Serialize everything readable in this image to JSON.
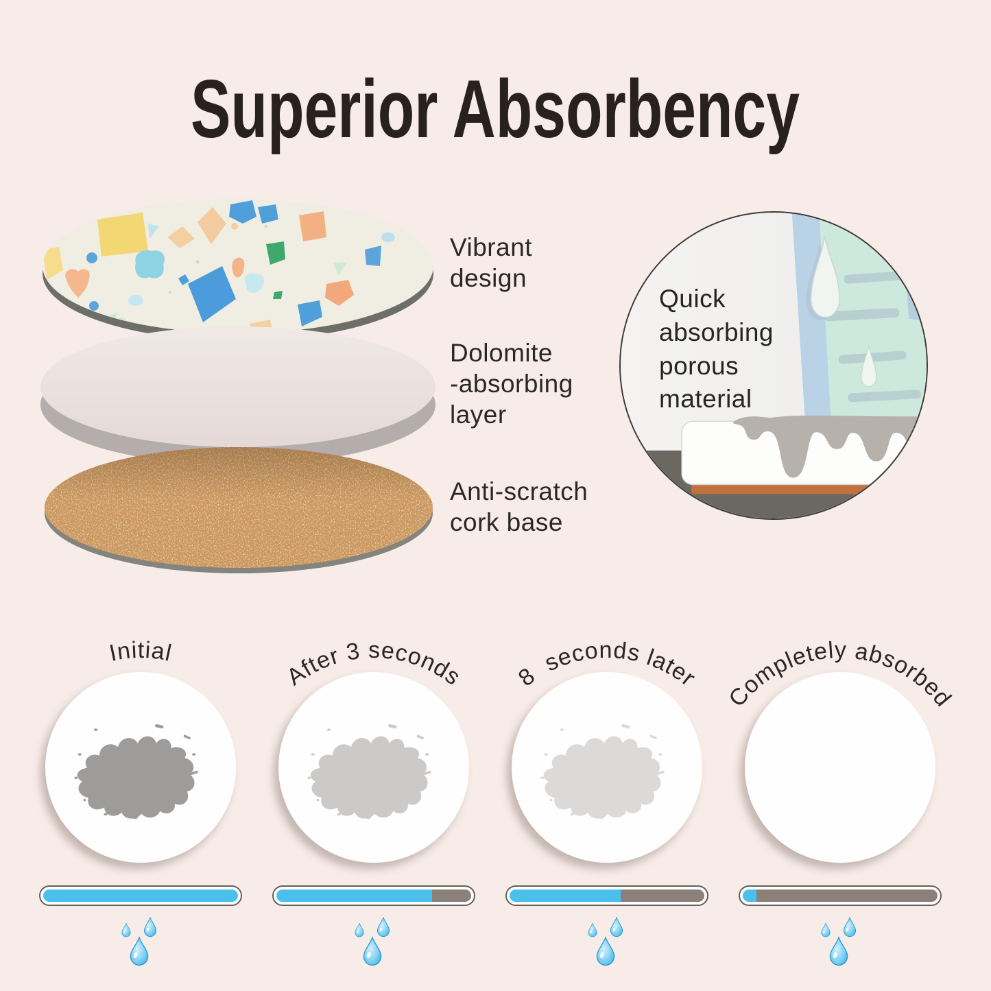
{
  "page": {
    "background": "#F8ECE8",
    "title": "Superior Absorbency",
    "title_color": "#28211E"
  },
  "layers": {
    "vibrant": "Vibrant\ndesign",
    "dolomite": "Dolomite\n-absorbing\nlayer",
    "cork": "Anti-scratch\ncork base"
  },
  "inset": {
    "caption": "Quick\nabsorbing\nporous\nmaterial"
  },
  "icons": {
    "water_drops": "water-drops-icon",
    "stain": "stain-splat-icon"
  },
  "timeline": {
    "bar_colors": {
      "blue": "#4CC0ED",
      "gray": "#8A8179"
    },
    "panels": [
      {
        "label": "Initial",
        "stain_color": "#9D9C9A",
        "blue_pct": 100,
        "gray_pct": 0
      },
      {
        "label": "After 3 seconds",
        "stain_color": "#CBCAC8",
        "blue_pct": 80,
        "gray_pct": 20
      },
      {
        "label": "8  seconds later",
        "stain_color": "#DCDAD8",
        "blue_pct": 57,
        "gray_pct": 43
      },
      {
        "label": "Completely absorbed",
        "stain_color": null,
        "blue_pct": 7,
        "gray_pct": 93
      }
    ]
  }
}
